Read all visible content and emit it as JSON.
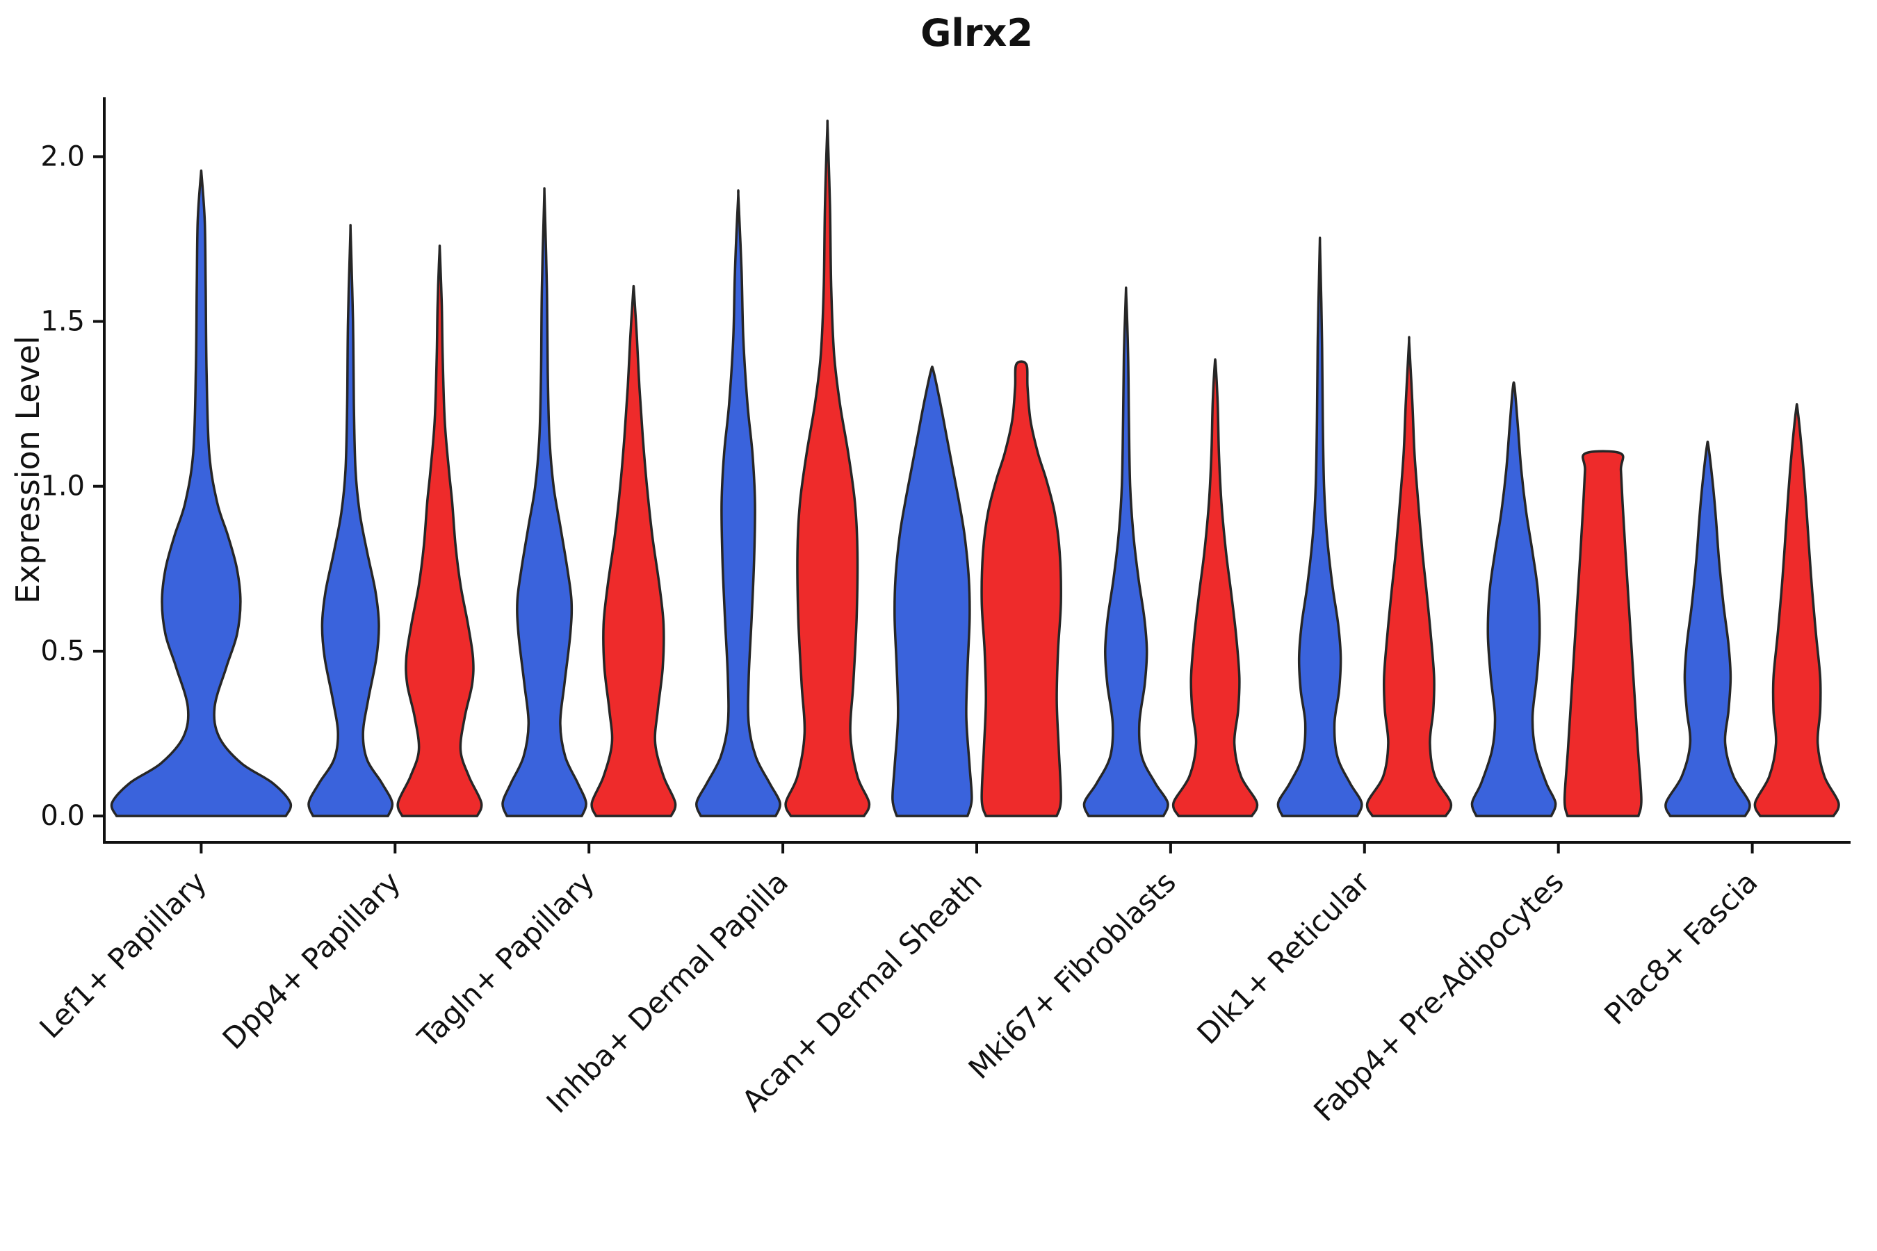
{
  "figure": {
    "title": "Glrx2",
    "ylabel": "Expression Level"
  },
  "chart_data": {
    "type": "violin",
    "title": "Glrx2",
    "xlabel": "",
    "ylabel": "Expression Level",
    "ylim": [
      -0.08,
      2.18
    ],
    "yticks": [
      0.0,
      0.5,
      1.0,
      1.5,
      2.0
    ],
    "ytick_labels": [
      "0.0",
      "0.5",
      "1.0",
      "1.5",
      "2.0"
    ],
    "grid": false,
    "legend": "none",
    "categories": [
      "Lef1+ Papillary",
      "Dpp4+ Papillary",
      "Tagln+ Papillary",
      "Inhba+ Dermal Papilla",
      "Acan+ Dermal Sheath",
      "Mki67+ Fibroblasts",
      "Dlk1+ Reticular",
      "Fabp4+ Pre-Adipocytes",
      "Plac8+ Fascia"
    ],
    "series": [
      {
        "name": "blue",
        "color": "#3A63DC"
      },
      {
        "name": "red",
        "color": "#EE2B2B"
      }
    ],
    "outline_color": "#262626",
    "violins": [
      {
        "category": "Lef1+ Papillary",
        "series": "blue",
        "max_expression": 1.94,
        "profile": [
          [
            0,
            0.95
          ],
          [
            0.04,
            1.0
          ],
          [
            0.1,
            0.8
          ],
          [
            0.16,
            0.45
          ],
          [
            0.24,
            0.2
          ],
          [
            0.33,
            0.15
          ],
          [
            0.45,
            0.28
          ],
          [
            0.55,
            0.4
          ],
          [
            0.65,
            0.44
          ],
          [
            0.75,
            0.4
          ],
          [
            0.85,
            0.3
          ],
          [
            0.95,
            0.18
          ],
          [
            1.1,
            0.09
          ],
          [
            1.35,
            0.06
          ],
          [
            1.6,
            0.05
          ],
          [
            1.8,
            0.04
          ],
          [
            1.94,
            0.005
          ]
        ]
      },
      {
        "category": "Dpp4+ Papillary",
        "series": "blue",
        "max_expression": 1.76,
        "profile": [
          [
            0,
            0.9
          ],
          [
            0.04,
            1.0
          ],
          [
            0.1,
            0.75
          ],
          [
            0.17,
            0.4
          ],
          [
            0.25,
            0.3
          ],
          [
            0.35,
            0.42
          ],
          [
            0.48,
            0.62
          ],
          [
            0.58,
            0.68
          ],
          [
            0.68,
            0.6
          ],
          [
            0.8,
            0.4
          ],
          [
            0.92,
            0.22
          ],
          [
            1.05,
            0.12
          ],
          [
            1.25,
            0.08
          ],
          [
            1.5,
            0.06
          ],
          [
            1.76,
            0.005
          ]
        ]
      },
      {
        "category": "Dpp4+ Papillary",
        "series": "red",
        "max_expression": 1.71,
        "profile": [
          [
            0,
            0.9
          ],
          [
            0.04,
            1.0
          ],
          [
            0.12,
            0.7
          ],
          [
            0.2,
            0.5
          ],
          [
            0.3,
            0.6
          ],
          [
            0.4,
            0.78
          ],
          [
            0.48,
            0.8
          ],
          [
            0.58,
            0.68
          ],
          [
            0.7,
            0.5
          ],
          [
            0.82,
            0.38
          ],
          [
            0.95,
            0.3
          ],
          [
            1.05,
            0.22
          ],
          [
            1.2,
            0.12
          ],
          [
            1.4,
            0.07
          ],
          [
            1.55,
            0.05
          ],
          [
            1.71,
            0.005
          ]
        ]
      },
      {
        "category": "Tagln+ Papillary",
        "series": "blue",
        "max_expression": 1.87,
        "profile": [
          [
            0,
            0.9
          ],
          [
            0.04,
            1.0
          ],
          [
            0.1,
            0.8
          ],
          [
            0.18,
            0.5
          ],
          [
            0.28,
            0.38
          ],
          [
            0.4,
            0.48
          ],
          [
            0.55,
            0.62
          ],
          [
            0.65,
            0.65
          ],
          [
            0.75,
            0.55
          ],
          [
            0.88,
            0.38
          ],
          [
            1.0,
            0.22
          ],
          [
            1.15,
            0.12
          ],
          [
            1.35,
            0.08
          ],
          [
            1.6,
            0.06
          ],
          [
            1.87,
            0.005
          ]
        ]
      },
      {
        "category": "Tagln+ Papillary",
        "series": "red",
        "max_expression": 1.59,
        "profile": [
          [
            0,
            0.9
          ],
          [
            0.04,
            1.0
          ],
          [
            0.12,
            0.72
          ],
          [
            0.22,
            0.52
          ],
          [
            0.32,
            0.58
          ],
          [
            0.45,
            0.7
          ],
          [
            0.58,
            0.72
          ],
          [
            0.7,
            0.62
          ],
          [
            0.85,
            0.45
          ],
          [
            1.0,
            0.32
          ],
          [
            1.15,
            0.22
          ],
          [
            1.3,
            0.14
          ],
          [
            1.45,
            0.08
          ],
          [
            1.59,
            0.01
          ]
        ]
      },
      {
        "category": "Inhba+ Dermal Papilla",
        "series": "blue",
        "max_expression": 1.87,
        "profile": [
          [
            0,
            0.9
          ],
          [
            0.04,
            1.0
          ],
          [
            0.1,
            0.75
          ],
          [
            0.18,
            0.42
          ],
          [
            0.28,
            0.25
          ],
          [
            0.42,
            0.25
          ],
          [
            0.6,
            0.32
          ],
          [
            0.78,
            0.38
          ],
          [
            0.95,
            0.4
          ],
          [
            1.1,
            0.34
          ],
          [
            1.25,
            0.22
          ],
          [
            1.45,
            0.12
          ],
          [
            1.65,
            0.08
          ],
          [
            1.87,
            0.005
          ]
        ]
      },
      {
        "category": "Inhba+ Dermal Papilla",
        "series": "red",
        "max_expression": 2.08,
        "profile": [
          [
            0,
            0.88
          ],
          [
            0.04,
            1.0
          ],
          [
            0.12,
            0.72
          ],
          [
            0.25,
            0.55
          ],
          [
            0.4,
            0.62
          ],
          [
            0.6,
            0.7
          ],
          [
            0.8,
            0.72
          ],
          [
            0.95,
            0.66
          ],
          [
            1.1,
            0.5
          ],
          [
            1.25,
            0.3
          ],
          [
            1.4,
            0.16
          ],
          [
            1.6,
            0.09
          ],
          [
            1.85,
            0.06
          ],
          [
            2.08,
            0.005
          ]
        ]
      },
      {
        "category": "Acan+ Dermal Sheath",
        "series": "blue",
        "max_expression": 1.35,
        "profile": [
          [
            0,
            0.85
          ],
          [
            0.05,
            0.95
          ],
          [
            0.15,
            0.9
          ],
          [
            0.3,
            0.82
          ],
          [
            0.45,
            0.85
          ],
          [
            0.6,
            0.9
          ],
          [
            0.72,
            0.88
          ],
          [
            0.85,
            0.78
          ],
          [
            0.95,
            0.65
          ],
          [
            1.05,
            0.5
          ],
          [
            1.15,
            0.35
          ],
          [
            1.25,
            0.2
          ],
          [
            1.35,
            0.03
          ]
        ]
      },
      {
        "category": "Acan+ Dermal Sheath",
        "series": "red",
        "max_expression": 1.37,
        "profile": [
          [
            0,
            0.85
          ],
          [
            0.05,
            0.95
          ],
          [
            0.2,
            0.9
          ],
          [
            0.35,
            0.85
          ],
          [
            0.5,
            0.88
          ],
          [
            0.65,
            0.95
          ],
          [
            0.8,
            0.92
          ],
          [
            0.92,
            0.8
          ],
          [
            1.02,
            0.6
          ],
          [
            1.1,
            0.4
          ],
          [
            1.2,
            0.22
          ],
          [
            1.3,
            0.15
          ],
          [
            1.37,
            0.12
          ]
        ]
      },
      {
        "category": "Mki67+ Fibroblasts",
        "series": "blue",
        "max_expression": 1.58,
        "profile": [
          [
            0,
            0.9
          ],
          [
            0.04,
            1.0
          ],
          [
            0.1,
            0.7
          ],
          [
            0.18,
            0.38
          ],
          [
            0.28,
            0.32
          ],
          [
            0.4,
            0.45
          ],
          [
            0.5,
            0.5
          ],
          [
            0.6,
            0.44
          ],
          [
            0.72,
            0.3
          ],
          [
            0.85,
            0.18
          ],
          [
            1.0,
            0.1
          ],
          [
            1.2,
            0.07
          ],
          [
            1.4,
            0.05
          ],
          [
            1.58,
            0.005
          ]
        ]
      },
      {
        "category": "Mki67+ Fibroblasts",
        "series": "red",
        "max_expression": 1.37,
        "profile": [
          [
            0,
            0.88
          ],
          [
            0.04,
            1.0
          ],
          [
            0.12,
            0.62
          ],
          [
            0.22,
            0.46
          ],
          [
            0.32,
            0.55
          ],
          [
            0.42,
            0.58
          ],
          [
            0.55,
            0.5
          ],
          [
            0.68,
            0.38
          ],
          [
            0.8,
            0.26
          ],
          [
            0.95,
            0.15
          ],
          [
            1.1,
            0.09
          ],
          [
            1.25,
            0.06
          ],
          [
            1.37,
            0.01
          ]
        ]
      },
      {
        "category": "Dlk1+ Reticular",
        "series": "blue",
        "max_expression": 1.72,
        "profile": [
          [
            0,
            0.9
          ],
          [
            0.04,
            1.0
          ],
          [
            0.1,
            0.72
          ],
          [
            0.18,
            0.42
          ],
          [
            0.28,
            0.35
          ],
          [
            0.38,
            0.46
          ],
          [
            0.48,
            0.5
          ],
          [
            0.58,
            0.44
          ],
          [
            0.7,
            0.3
          ],
          [
            0.85,
            0.17
          ],
          [
            1.0,
            0.1
          ],
          [
            1.2,
            0.07
          ],
          [
            1.45,
            0.05
          ],
          [
            1.72,
            0.005
          ]
        ]
      },
      {
        "category": "Dlk1+ Reticular",
        "series": "red",
        "max_expression": 1.43,
        "profile": [
          [
            0,
            0.88
          ],
          [
            0.04,
            1.0
          ],
          [
            0.12,
            0.62
          ],
          [
            0.22,
            0.5
          ],
          [
            0.32,
            0.58
          ],
          [
            0.42,
            0.6
          ],
          [
            0.55,
            0.52
          ],
          [
            0.68,
            0.42
          ],
          [
            0.8,
            0.32
          ],
          [
            0.95,
            0.22
          ],
          [
            1.1,
            0.13
          ],
          [
            1.25,
            0.08
          ],
          [
            1.43,
            0.005
          ]
        ]
      },
      {
        "category": "Fabp4+ Pre-Adipocytes",
        "series": "blue",
        "max_expression": 1.3,
        "profile": [
          [
            0,
            0.9
          ],
          [
            0.04,
            1.0
          ],
          [
            0.1,
            0.78
          ],
          [
            0.2,
            0.52
          ],
          [
            0.3,
            0.45
          ],
          [
            0.42,
            0.55
          ],
          [
            0.55,
            0.62
          ],
          [
            0.68,
            0.58
          ],
          [
            0.8,
            0.45
          ],
          [
            0.92,
            0.3
          ],
          [
            1.05,
            0.18
          ],
          [
            1.18,
            0.1
          ],
          [
            1.3,
            0.02
          ]
        ]
      },
      {
        "category": "Fabp4+ Pre-Adipocytes",
        "series": "red",
        "max_expression": 1.1,
        "profile": [
          [
            0,
            0.85
          ],
          [
            0.05,
            0.92
          ],
          [
            0.2,
            0.84
          ],
          [
            0.4,
            0.74
          ],
          [
            0.6,
            0.64
          ],
          [
            0.8,
            0.54
          ],
          [
            0.95,
            0.47
          ],
          [
            1.05,
            0.43
          ],
          [
            1.1,
            0.42
          ]
        ]
      },
      {
        "category": "Plac8+ Fascia",
        "series": "blue",
        "max_expression": 1.12,
        "profile": [
          [
            0,
            0.9
          ],
          [
            0.04,
            1.0
          ],
          [
            0.12,
            0.62
          ],
          [
            0.22,
            0.42
          ],
          [
            0.32,
            0.5
          ],
          [
            0.42,
            0.55
          ],
          [
            0.52,
            0.5
          ],
          [
            0.64,
            0.38
          ],
          [
            0.78,
            0.27
          ],
          [
            0.9,
            0.2
          ],
          [
            1.0,
            0.13
          ],
          [
            1.12,
            0.02
          ]
        ]
      },
      {
        "category": "Plac8+ Fascia",
        "series": "red",
        "max_expression": 1.23,
        "profile": [
          [
            0,
            0.88
          ],
          [
            0.04,
            1.0
          ],
          [
            0.12,
            0.66
          ],
          [
            0.22,
            0.5
          ],
          [
            0.32,
            0.56
          ],
          [
            0.42,
            0.56
          ],
          [
            0.55,
            0.46
          ],
          [
            0.68,
            0.37
          ],
          [
            0.8,
            0.3
          ],
          [
            0.95,
            0.22
          ],
          [
            1.08,
            0.14
          ],
          [
            1.23,
            0.02
          ]
        ]
      }
    ]
  }
}
